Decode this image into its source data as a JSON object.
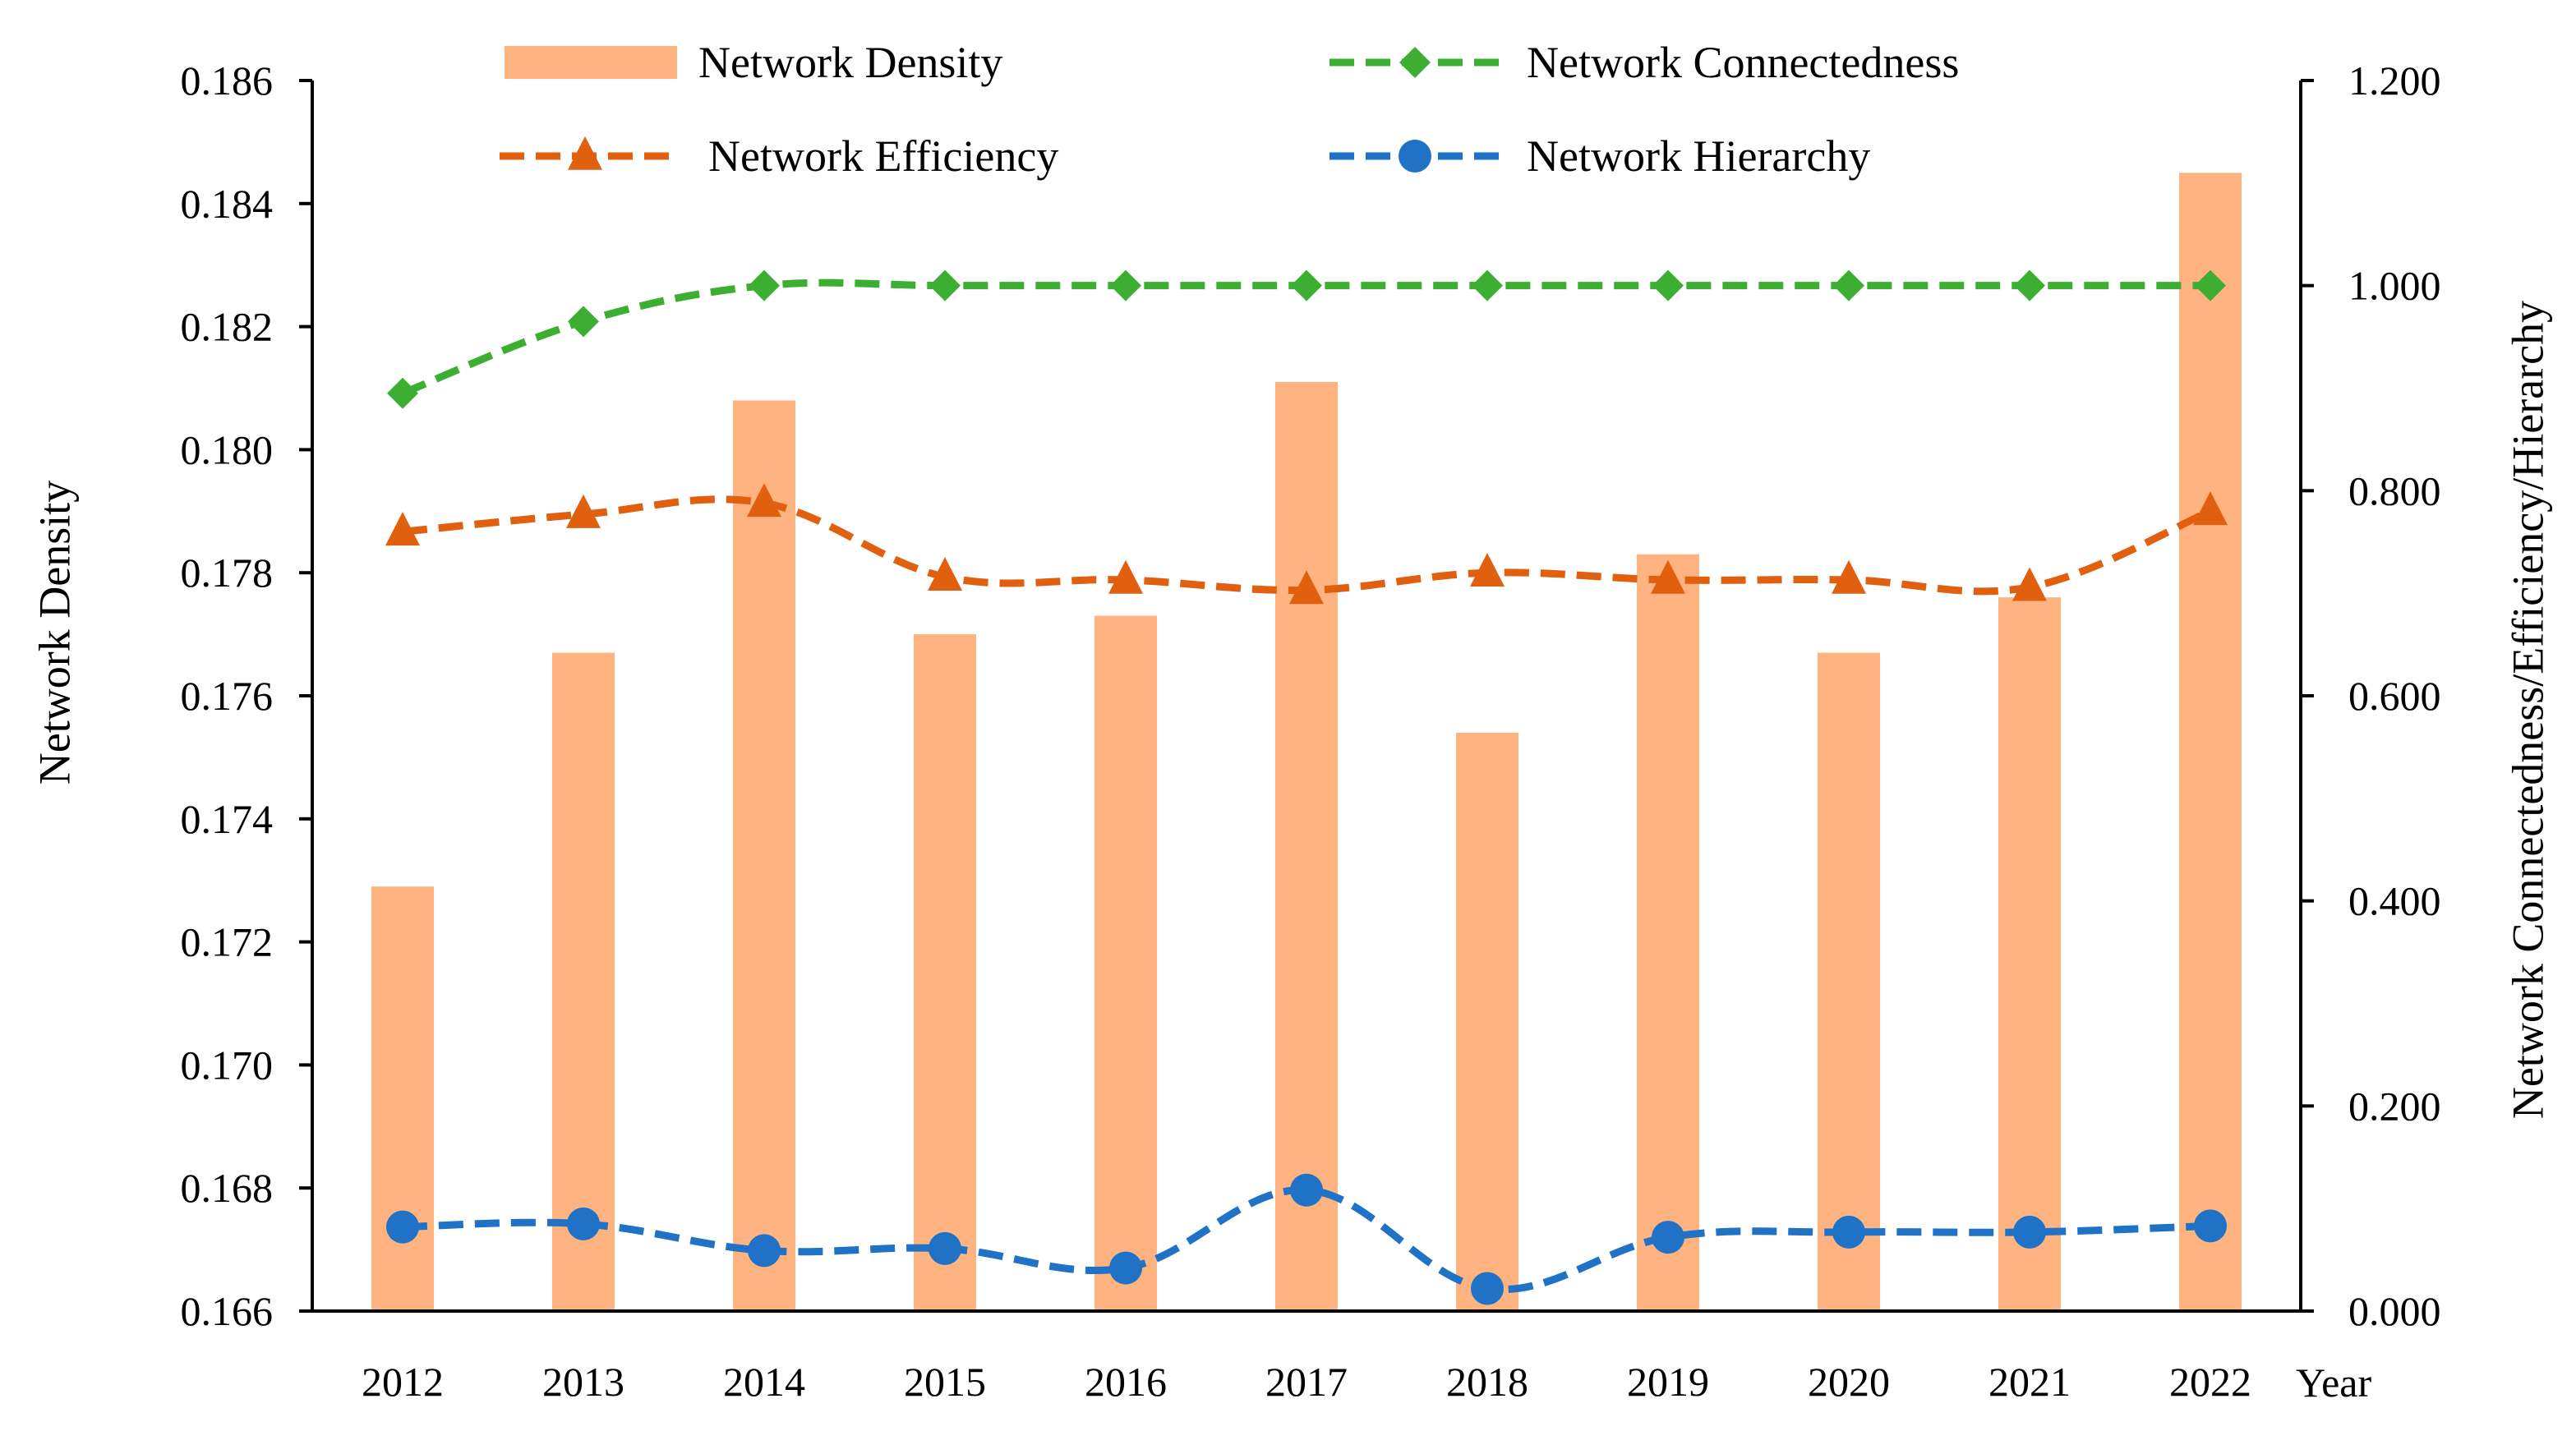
{
  "chart_data": {
    "type": "bar+line (dual axis)",
    "xlabel": "Year",
    "ylabel_left": "Network Density",
    "ylabel_right": "Network Connectedness/Efficiency/Hierarchy",
    "categories": [
      "2012",
      "2013",
      "2014",
      "2015",
      "2016",
      "2017",
      "2018",
      "2019",
      "2020",
      "2021",
      "2022"
    ],
    "left_axis": {
      "ylim": [
        0.166,
        0.186
      ],
      "ticks": [
        "0.166",
        "0.168",
        "0.170",
        "0.172",
        "0.174",
        "0.176",
        "0.178",
        "0.180",
        "0.182",
        "0.184",
        "0.186"
      ]
    },
    "right_axis": {
      "ylim": [
        0.0,
        1.2
      ],
      "ticks": [
        "0.000",
        "0.200",
        "0.400",
        "0.600",
        "0.800",
        "1.000",
        "1.200"
      ]
    },
    "legend": [
      "Network Density",
      "Network Connectedness",
      "Network Efficiency",
      "Network Hierarchy"
    ],
    "series": [
      {
        "name": "Network Density",
        "kind": "bar",
        "axis": "left",
        "color": "#FFB380",
        "values": [
          0.1729,
          0.1767,
          0.1808,
          0.177,
          0.1773,
          0.1811,
          0.1754,
          0.1783,
          0.1767,
          0.1776,
          0.1845
        ]
      },
      {
        "name": "Network Connectedness",
        "kind": "line",
        "axis": "right",
        "color": "#3CAF32",
        "marker": "diamond",
        "values": [
          0.895,
          0.965,
          1.0,
          1.0,
          1.0,
          1.0,
          1.0,
          1.0,
          1.0,
          1.0,
          1.0
        ]
      },
      {
        "name": "Network Efficiency",
        "kind": "line",
        "axis": "right",
        "color": "#E06010",
        "marker": "triangle",
        "values": [
          0.76,
          0.777,
          0.788,
          0.716,
          0.713,
          0.703,
          0.72,
          0.713,
          0.713,
          0.706,
          0.78
        ]
      },
      {
        "name": "Network Hierarchy",
        "kind": "line",
        "axis": "right",
        "color": "#1F72C6",
        "marker": "circle",
        "values": [
          0.082,
          0.085,
          0.059,
          0.061,
          0.042,
          0.118,
          0.022,
          0.072,
          0.077,
          0.077,
          0.083
        ]
      }
    ]
  }
}
